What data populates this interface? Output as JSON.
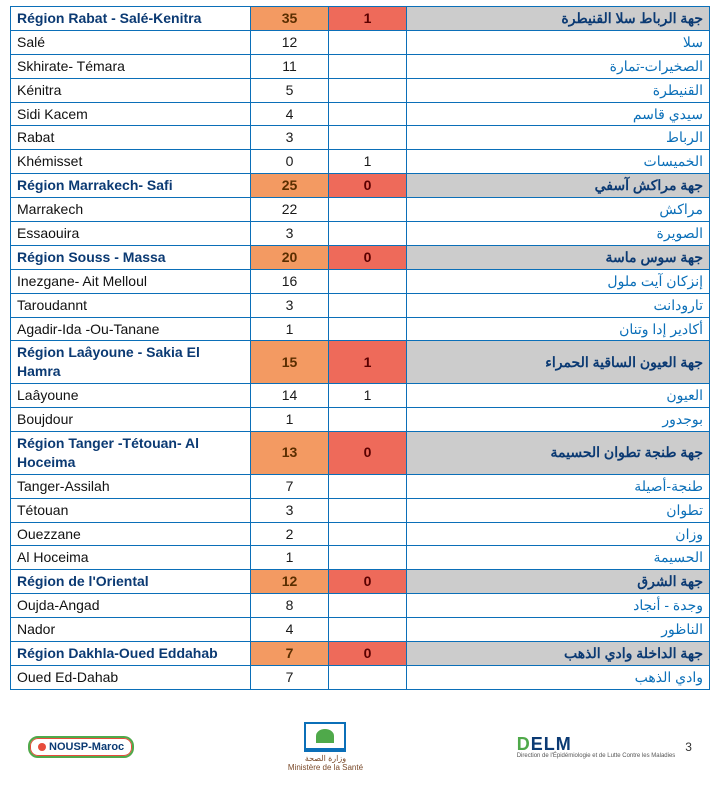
{
  "colors": {
    "border": "#0b6fb8",
    "header_fr_bg": "#ffffff",
    "header_ar_bg": "#cccccc",
    "header_v1_bg": "#f39a62",
    "header_v2_bg": "#ee6a5a",
    "header_text": "#0b3a73",
    "arabic_text": "#0b6fb8"
  },
  "table": {
    "columns": [
      "fr",
      "v1",
      "v2",
      "ar"
    ],
    "groups": [
      {
        "header": {
          "fr": "Région Rabat - Salé-Kenitra",
          "v1": "35",
          "v2": "1",
          "ar": "جهة الرباط سلا القنيطرة"
        },
        "rows": [
          {
            "fr": "Salé",
            "v1": "12",
            "v2": "",
            "ar": "سلا"
          },
          {
            "fr": "Skhirate- Témara",
            "v1": "11",
            "v2": "",
            "ar": "الصخيرات-تمارة"
          },
          {
            "fr": "Kénitra",
            "v1": "5",
            "v2": "",
            "ar": "القنيطرة"
          },
          {
            "fr": "Sidi Kacem",
            "v1": "4",
            "v2": "",
            "ar": "سيدي قاسم"
          },
          {
            "fr": "Rabat",
            "v1": "3",
            "v2": "",
            "ar": "الرباط"
          },
          {
            "fr": "Khémisset",
            "v1": "0",
            "v2": "1",
            "ar": "الخميسات"
          }
        ]
      },
      {
        "header": {
          "fr": "Région Marrakech- Safi",
          "v1": "25",
          "v2": "0",
          "ar": "جهة مراكش آسفي"
        },
        "rows": [
          {
            "fr": "Marrakech",
            "v1": "22",
            "v2": "",
            "ar": "مراكش"
          },
          {
            "fr": "Essaouira",
            "v1": "3",
            "v2": "",
            "ar": "الصويرة"
          }
        ]
      },
      {
        "header": {
          "fr": "Région Souss - Massa",
          "v1": "20",
          "v2": "0",
          "ar": "جهة سوس ماسة"
        },
        "rows": [
          {
            "fr": "Inezgane- Ait Melloul",
            "v1": "16",
            "v2": "",
            "ar": "إنزكان آيت ملول"
          },
          {
            "fr": "Taroudannt",
            "v1": "3",
            "v2": "",
            "ar": "تارودانت"
          },
          {
            "fr": "Agadir-Ida -Ou-Tanane",
            "v1": "1",
            "v2": "",
            "ar": "أكادير إدا وتنان"
          }
        ]
      },
      {
        "header": {
          "fr": "Région Laâyoune - Sakia El Hamra",
          "v1": "15",
          "v2": "1",
          "ar": "جهة العيون الساقية الحمراء"
        },
        "rows": [
          {
            "fr": "Laâyoune",
            "v1": "14",
            "v2": "1",
            "ar": "العيون"
          },
          {
            "fr": "Boujdour",
            "v1": "1",
            "v2": "",
            "ar": "بوجدور"
          }
        ]
      },
      {
        "header": {
          "fr": "Région Tanger -Tétouan- Al Hoceima",
          "v1": "13",
          "v2": "0",
          "ar": "جهة طنجة تطوان الحسيمة"
        },
        "rows": [
          {
            "fr": "Tanger-Assilah",
            "v1": "7",
            "v2": "",
            "ar": "طنجة-أصيلة"
          },
          {
            "fr": "Tétouan",
            "v1": "3",
            "v2": "",
            "ar": "تطوان"
          },
          {
            "fr": "Ouezzane",
            "v1": "2",
            "v2": "",
            "ar": "وزان"
          },
          {
            "fr": "Al Hoceima",
            "v1": "1",
            "v2": "",
            "ar": "الحسيمة"
          }
        ]
      },
      {
        "header": {
          "fr": "Région de l'Oriental",
          "v1": "12",
          "v2": "0",
          "ar": "جهة الشرق"
        },
        "rows": [
          {
            "fr": "Oujda-Angad",
            "v1": "8",
            "v2": "",
            "ar": "وجدة - أنجاد"
          },
          {
            "fr": "Nador",
            "v1": "4",
            "v2": "",
            "ar": "الناظور"
          }
        ]
      },
      {
        "header": {
          "fr": "Région Dakhla-Oued Eddahab",
          "v1": "7",
          "v2": "0",
          "ar": "جهة الداخلة وادي الذهب"
        },
        "rows": [
          {
            "fr": "Oued Ed-Dahab",
            "v1": "7",
            "v2": "",
            "ar": "وادي الذهب"
          }
        ]
      }
    ]
  },
  "footer": {
    "logo_left": "NOUSP-Maroc",
    "logo_center_ar": "وزارة الصحة",
    "logo_center_fr": "Ministère de la Santé",
    "logo_right": "DELM",
    "logo_right_sub": "Direction de l'Épidémiologie et de Lutte Contre les Maladies",
    "page_number": "3"
  }
}
